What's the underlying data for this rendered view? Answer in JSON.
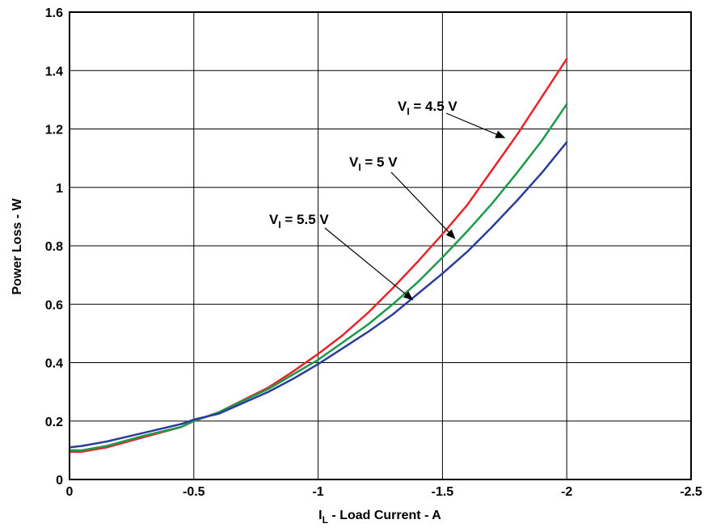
{
  "chart_data": {
    "type": "line",
    "xlabel_main": "I",
    "xlabel_sub": "L",
    "xlabel_rest": " - Load Current - A",
    "ylabel": "Power Loss - W",
    "xlim": [
      0,
      -2.5
    ],
    "ylim": [
      0,
      1.6
    ],
    "x_ticks": [
      0,
      -0.5,
      -1,
      -1.5,
      -2,
      -2.5
    ],
    "x_tick_labels": [
      "0",
      "-0.5",
      "-1",
      "-1.5",
      "-2",
      "-2.5"
    ],
    "y_ticks": [
      0,
      0.2,
      0.4,
      0.6,
      0.8,
      1,
      1.2,
      1.4,
      1.6
    ],
    "y_tick_labels": [
      "0",
      "0.2",
      "0.4",
      "0.6",
      "0.8",
      "1",
      "1.2",
      "1.4",
      "1.6"
    ],
    "grid": true,
    "series": [
      {
        "name": "V_I = 4.5 V",
        "color": "#e8242a",
        "x": [
          0,
          -0.05,
          -0.15,
          -0.3,
          -0.45,
          -0.5,
          -0.6,
          -0.8,
          -0.9,
          -1.0,
          -1.1,
          -1.2,
          -1.3,
          -1.4,
          -1.5,
          -1.6,
          -1.7,
          -1.8,
          -1.9,
          -2.0
        ],
        "values": [
          0.095,
          0.095,
          0.11,
          0.145,
          0.18,
          0.2,
          0.23,
          0.315,
          0.37,
          0.43,
          0.495,
          0.57,
          0.655,
          0.745,
          0.84,
          0.94,
          1.06,
          1.18,
          1.31,
          1.44
        ]
      },
      {
        "name": "V_I = 5 V",
        "color": "#1a9a4a",
        "x": [
          0,
          -0.05,
          -0.15,
          -0.3,
          -0.45,
          -0.5,
          -0.6,
          -0.8,
          -0.9,
          -1.0,
          -1.1,
          -1.2,
          -1.3,
          -1.4,
          -1.5,
          -1.6,
          -1.7,
          -1.8,
          -1.9,
          -2.0
        ],
        "values": [
          0.1,
          0.1,
          0.115,
          0.15,
          0.18,
          0.2,
          0.23,
          0.31,
          0.36,
          0.41,
          0.47,
          0.53,
          0.6,
          0.675,
          0.76,
          0.85,
          0.945,
          1.05,
          1.16,
          1.285
        ]
      },
      {
        "name": "V_I = 5.5 V",
        "color": "#2a3d99",
        "x": [
          0,
          -0.05,
          -0.15,
          -0.3,
          -0.45,
          -0.5,
          -0.6,
          -0.8,
          -0.9,
          -1.0,
          -1.1,
          -1.2,
          -1.3,
          -1.4,
          -1.5,
          -1.6,
          -1.7,
          -1.8,
          -1.9,
          -2.0
        ],
        "values": [
          0.11,
          0.115,
          0.13,
          0.16,
          0.19,
          0.205,
          0.225,
          0.3,
          0.345,
          0.395,
          0.45,
          0.505,
          0.565,
          0.635,
          0.705,
          0.78,
          0.865,
          0.955,
          1.05,
          1.155
        ]
      }
    ],
    "annotations": [
      {
        "text_main": "V",
        "text_sub": "I",
        "text_rest": " = 4.5 V",
        "arrow_to": [
          -1.75,
          1.17
        ]
      },
      {
        "text_main": "V",
        "text_sub": "I",
        "text_rest": " = 5 V",
        "arrow_to": [
          -1.55,
          0.825
        ]
      },
      {
        "text_main": "V",
        "text_sub": "I",
        "text_rest": " = 5.5 V",
        "arrow_to": [
          -1.38,
          0.615
        ]
      }
    ]
  }
}
